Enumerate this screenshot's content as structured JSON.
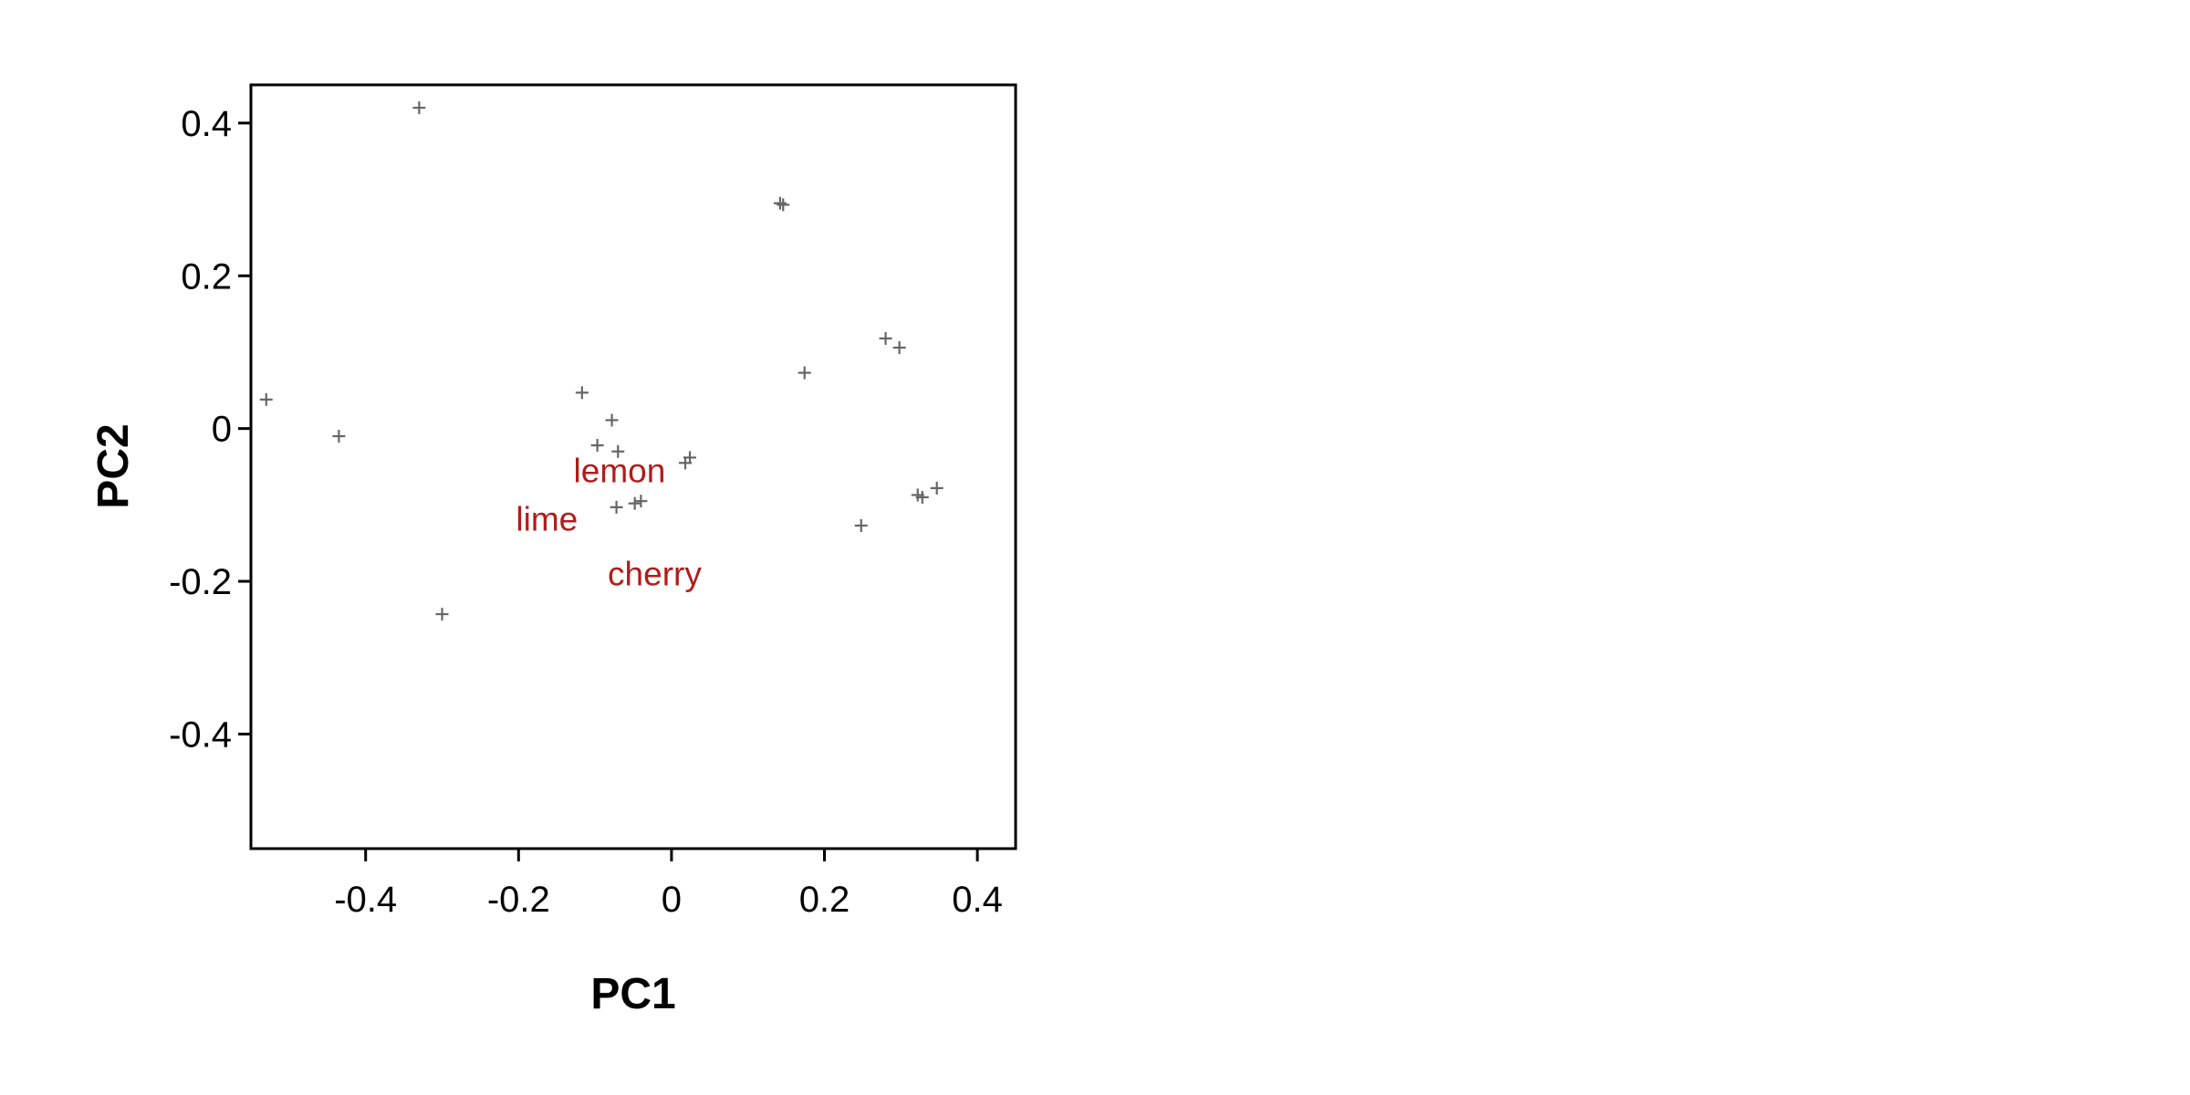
{
  "chart_data": {
    "type": "scatter",
    "title": "",
    "xlabel": "PC1",
    "ylabel": "PC2",
    "xlim": [
      -0.55,
      0.45
    ],
    "ylim": [
      -0.55,
      0.45
    ],
    "x_ticks": [
      -0.4,
      -0.2,
      0,
      0.2,
      0.4
    ],
    "x_tick_labels": [
      "-0.4",
      "-0.2",
      "0",
      "0.2",
      "0.4"
    ],
    "y_ticks": [
      0.4,
      0.2,
      0,
      -0.2,
      -0.4
    ],
    "y_tick_labels": [
      "0.4",
      "0.2",
      "0",
      "-0.2",
      "-0.4"
    ],
    "grid": false,
    "legend": "none",
    "marker": "plus",
    "point_color": "#666666",
    "label_color": "#b31b1b",
    "series": [
      {
        "points": [
          {
            "x": -0.33,
            "y": 0.42
          },
          {
            "x": 0.142,
            "y": 0.295
          },
          {
            "x": 0.146,
            "y": 0.293
          },
          {
            "x": -0.53,
            "y": 0.038
          },
          {
            "x": -0.435,
            "y": -0.01
          },
          {
            "x": -0.3,
            "y": -0.243
          },
          {
            "x": -0.117,
            "y": 0.047
          },
          {
            "x": -0.078,
            "y": 0.011
          },
          {
            "x": -0.097,
            "y": -0.022
          },
          {
            "x": -0.07,
            "y": -0.03
          },
          {
            "x": -0.072,
            "y": -0.103
          },
          {
            "x": -0.048,
            "y": -0.098
          },
          {
            "x": -0.04,
            "y": -0.095
          },
          {
            "x": 0.018,
            "y": -0.045
          },
          {
            "x": 0.024,
            "y": -0.038
          },
          {
            "x": 0.174,
            "y": 0.073
          },
          {
            "x": 0.28,
            "y": 0.118
          },
          {
            "x": 0.298,
            "y": 0.106
          },
          {
            "x": 0.248,
            "y": -0.127
          },
          {
            "x": 0.322,
            "y": -0.087
          },
          {
            "x": 0.328,
            "y": -0.09
          },
          {
            "x": 0.347,
            "y": -0.078
          }
        ]
      }
    ],
    "annotations": [
      {
        "text": "lemon",
        "x": -0.068,
        "y": -0.055
      },
      {
        "text": "lime",
        "x": -0.163,
        "y": -0.118
      },
      {
        "text": "cherry",
        "x": -0.022,
        "y": -0.19
      }
    ]
  }
}
